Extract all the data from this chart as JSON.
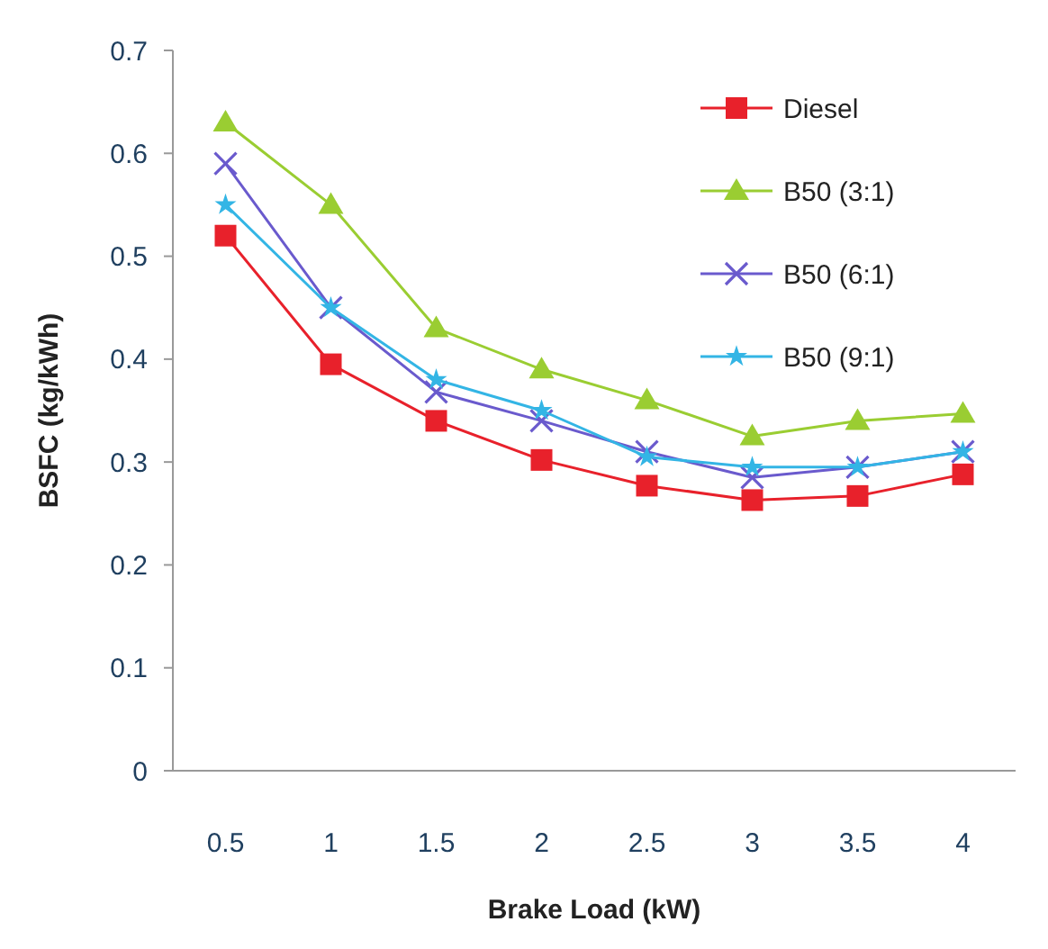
{
  "chart_data": {
    "type": "line",
    "xlabel": "Brake Load (kW)",
    "ylabel": "BSFC (kg/kWh)",
    "categories": [
      "0.5",
      "1",
      "1.5",
      "2",
      "2.5",
      "3",
      "3.5",
      "4"
    ],
    "ylim": [
      0,
      0.7
    ],
    "yticks": [
      0,
      0.1,
      0.2,
      0.3,
      0.4,
      0.5,
      0.6,
      0.7
    ],
    "grid": false,
    "legend": "top right",
    "series": [
      {
        "name": "Diesel",
        "color": "#e8212b",
        "marker": "square",
        "values": [
          0.52,
          0.395,
          0.34,
          0.302,
          0.277,
          0.263,
          0.267,
          0.288
        ]
      },
      {
        "name": "B50 (3:1)",
        "color": "#9acd32",
        "marker": "triangle",
        "values": [
          0.63,
          0.55,
          0.43,
          0.39,
          0.36,
          0.325,
          0.34,
          0.347
        ]
      },
      {
        "name": "B50 (6:1)",
        "color": "#6a5acd",
        "marker": "cross",
        "values": [
          0.59,
          0.45,
          0.368,
          0.34,
          0.31,
          0.285,
          0.295,
          0.31
        ]
      },
      {
        "name": "B50 (9:1)",
        "color": "#33b5e5",
        "marker": "star",
        "values": [
          0.55,
          0.45,
          0.38,
          0.35,
          0.305,
          0.295,
          0.295,
          0.31
        ]
      }
    ]
  }
}
